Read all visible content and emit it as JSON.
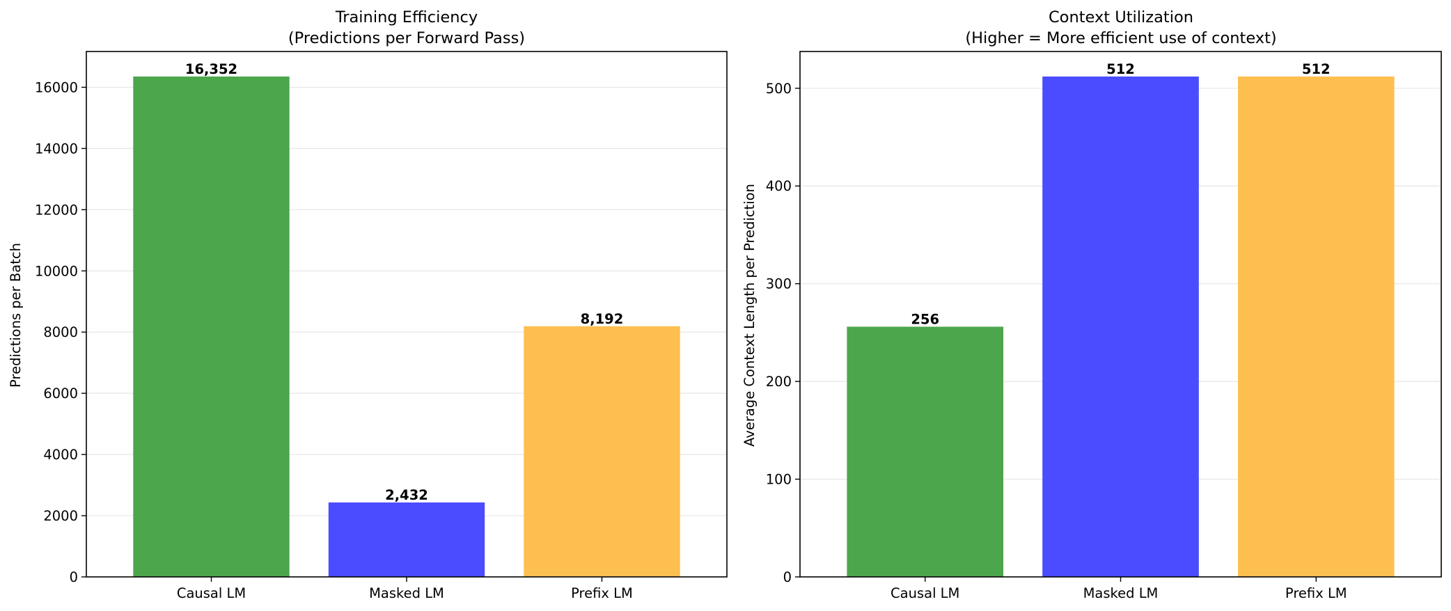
{
  "chart_data": [
    {
      "type": "bar",
      "title": "Training Efficiency",
      "subtitle": "(Predictions per Forward Pass)",
      "xlabel": "",
      "ylabel": "Predictions per Batch",
      "categories": [
        "Causal LM",
        "Masked LM",
        "Prefix LM"
      ],
      "values": [
        16352,
        2432,
        8192
      ],
      "value_labels": [
        "16,352",
        "2,432",
        "8,192"
      ],
      "colors": [
        "#4CA64C",
        "#4B4BFF",
        "#FDBF50"
      ],
      "ylim": [
        0,
        17169.6
      ],
      "yticks": [
        0,
        2000,
        4000,
        6000,
        8000,
        10000,
        12000,
        14000,
        16000
      ],
      "ytick_labels": [
        "0",
        "2000",
        "4000",
        "6000",
        "8000",
        "10000",
        "12000",
        "14000",
        "16000"
      ],
      "grid": "y"
    },
    {
      "type": "bar",
      "title": "Context Utilization",
      "subtitle": "(Higher = More efficient use of context)",
      "xlabel": "",
      "ylabel": "Average Context Length per Prediction",
      "categories": [
        "Causal LM",
        "Masked LM",
        "Prefix LM"
      ],
      "values": [
        256,
        512,
        512
      ],
      "value_labels": [
        "256",
        "512",
        "512"
      ],
      "colors": [
        "#4CA64C",
        "#4B4BFF",
        "#FDBF50"
      ],
      "ylim": [
        0,
        537.6
      ],
      "yticks": [
        0,
        100,
        200,
        300,
        400,
        500
      ],
      "ytick_labels": [
        "0",
        "100",
        "200",
        "300",
        "400",
        "500"
      ],
      "grid": "y"
    }
  ]
}
